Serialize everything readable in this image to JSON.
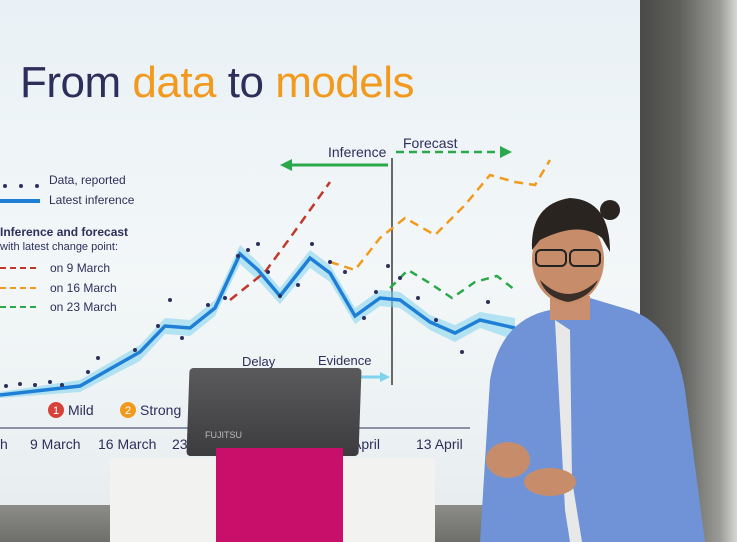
{
  "slide": {
    "title_part1": "From ",
    "title_word1": "data",
    "title_part2": " to ",
    "title_word2": "models"
  },
  "legend": {
    "data_reported": "Data, reported",
    "latest_inference": "Latest inference",
    "heading1": "Inference and forecast",
    "heading2": "with latest change point:",
    "on9": "on 9 March",
    "on16": "on 16 March",
    "on23": "on 23 March"
  },
  "labels": {
    "inference": "Inference",
    "forecast": "Forecast",
    "delay": "Delay",
    "evidence": "Evidence",
    "mild": "Mild",
    "strong": "Strong",
    "badge1": "1",
    "badge2": "2"
  },
  "axis": {
    "t0": "h",
    "t1": "9 March",
    "t2": "16 March",
    "t3": "23 M",
    "t4": "April",
    "t5": "13 April"
  },
  "laptop": {
    "brand": "FUJITSU"
  },
  "colors": {
    "navy": "#2d2f5a",
    "orange": "#f29a1e",
    "blue": "#1f7fd6",
    "red": "#c0392b",
    "green": "#2aa84a",
    "magenta": "#c8106b"
  }
}
